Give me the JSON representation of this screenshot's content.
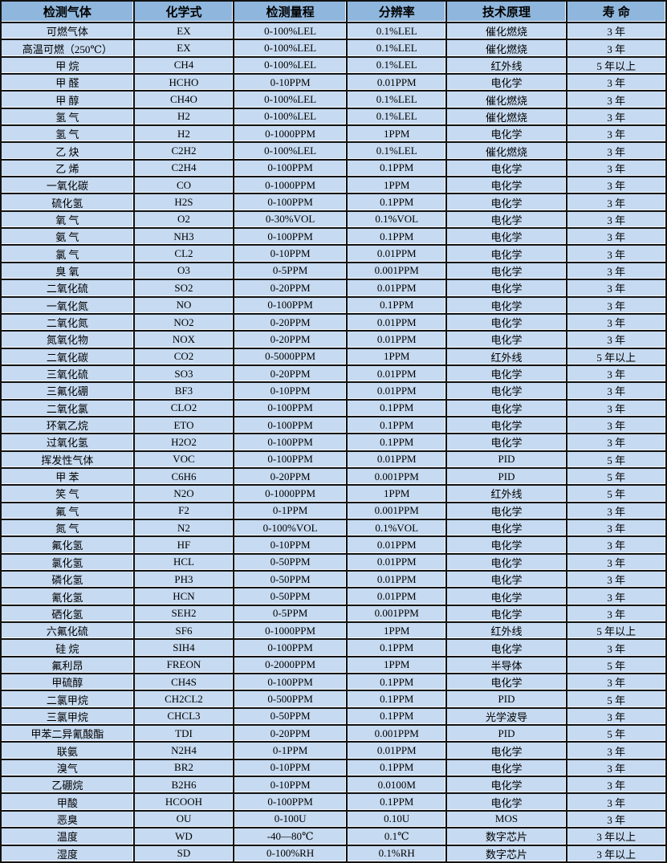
{
  "colors": {
    "header_bg": "#8fb6dc",
    "row_bg": "#c6daf1",
    "grid_line": "#121212",
    "grid_highlight": "#f7fafd",
    "text": "#000000"
  },
  "table": {
    "columns": [
      "检测气体",
      "化学式",
      "检测量程",
      "分辨率",
      "技术原理",
      "寿 命"
    ],
    "rows": [
      [
        "可燃气体",
        "EX",
        "0-100%LEL",
        "0.1%LEL",
        "催化燃烧",
        "3 年"
      ],
      [
        "高温可燃（250℃）",
        "EX",
        "0-100%LEL",
        "0.1%LEL",
        "催化燃烧",
        "3 年"
      ],
      [
        "甲 烷",
        "CH4",
        "0-100%LEL",
        "0.1%LEL",
        "红外线",
        "5 年以上"
      ],
      [
        "甲 醛",
        "HCHO",
        "0-10PPM",
        "0.01PPM",
        "电化学",
        "3 年"
      ],
      [
        "甲 醇",
        "CH4O",
        "0-100%LEL",
        "0.1%LEL",
        "催化燃烧",
        "3 年"
      ],
      [
        "氢 气",
        "H2",
        "0-100%LEL",
        "0.1%LEL",
        "催化燃烧",
        "3 年"
      ],
      [
        "氢 气",
        "H2",
        "0-1000PPM",
        "1PPM",
        "电化学",
        "3 年"
      ],
      [
        "乙 炔",
        "C2H2",
        "0-100%LEL",
        "0.1%LEL",
        "催化燃烧",
        "3 年"
      ],
      [
        "乙 烯",
        "C2H4",
        "0-100PPM",
        "0.1PPM",
        "电化学",
        "3 年"
      ],
      [
        "一氧化碳",
        "CO",
        "0-1000PPM",
        "1PPM",
        "电化学",
        "3 年"
      ],
      [
        "硫化氢",
        "H2S",
        "0-100PPM",
        "0.1PPM",
        "电化学",
        "3 年"
      ],
      [
        "氧 气",
        "O2",
        "0-30%VOL",
        "0.1%VOL",
        "电化学",
        "3 年"
      ],
      [
        "氨 气",
        "NH3",
        "0-100PPM",
        "0.1PPM",
        "电化学",
        "3 年"
      ],
      [
        "氯 气",
        "CL2",
        "0-10PPM",
        "0.01PPM",
        "电化学",
        "3 年"
      ],
      [
        "臭 氧",
        "O3",
        "0-5PPM",
        "0.001PPM",
        "电化学",
        "3 年"
      ],
      [
        "二氧化硫",
        "SO2",
        "0-20PPM",
        "0.01PPM",
        "电化学",
        "3 年"
      ],
      [
        "一氧化氮",
        "NO",
        "0-100PPM",
        "0.1PPM",
        "电化学",
        "3 年"
      ],
      [
        "二氧化氮",
        "NO2",
        "0-20PPM",
        "0.01PPM",
        "电化学",
        "3 年"
      ],
      [
        "氮氧化物",
        "NOX",
        "0-20PPM",
        "0.01PPM",
        "电化学",
        "3 年"
      ],
      [
        "二氧化碳",
        "CO2",
        "0-5000PPM",
        "1PPM",
        "红外线",
        "5 年以上"
      ],
      [
        "三氧化硫",
        "SO3",
        "0-20PPM",
        "0.01PPM",
        "电化学",
        "3 年"
      ],
      [
        "三氟化硼",
        "BF3",
        "0-10PPM",
        "0.01PPM",
        "电化学",
        "3 年"
      ],
      [
        "二氧化氯",
        "CLO2",
        "0-100PPM",
        "0.1PPM",
        "电化学",
        "3 年"
      ],
      [
        "环氧乙烷",
        "ETO",
        "0-100PPM",
        "0.1PPM",
        "电化学",
        "3 年"
      ],
      [
        "过氧化氢",
        "H2O2",
        "0-100PPM",
        "0.1PPM",
        "电化学",
        "3 年"
      ],
      [
        "挥发性气体",
        "VOC",
        "0-100PPM",
        "0.01PPM",
        "PID",
        "5 年"
      ],
      [
        "甲 苯",
        "C6H6",
        "0-20PPM",
        "0.001PPM",
        "PID",
        "5 年"
      ],
      [
        "笑 气",
        "N2O",
        "0-1000PPM",
        "1PPM",
        "红外线",
        "5 年"
      ],
      [
        "氟 气",
        "F2",
        "0-1PPM",
        "0.001PPM",
        "电化学",
        "3 年"
      ],
      [
        "氮 气",
        "N2",
        "0-100%VOL",
        "0.1%VOL",
        "电化学",
        "3 年"
      ],
      [
        "氟化氢",
        "HF",
        "0-10PPM",
        "0.01PPM",
        "电化学",
        "3 年"
      ],
      [
        "氯化氢",
        "HCL",
        "0-50PPM",
        "0.01PPM",
        "电化学",
        "3 年"
      ],
      [
        "磷化氢",
        "PH3",
        "0-50PPM",
        "0.01PPM",
        "电化学",
        "3 年"
      ],
      [
        "氰化氢",
        "HCN",
        "0-50PPM",
        "0.01PPM",
        "电化学",
        "3 年"
      ],
      [
        "硒化氢",
        "SEH2",
        "0-5PPM",
        "0.001PPM",
        "电化学",
        "3 年"
      ],
      [
        "六氟化硫",
        "SF6",
        "0-1000PPM",
        "1PPM",
        "红外线",
        "5 年以上"
      ],
      [
        "硅 烷",
        "SIH4",
        "0-100PPM",
        "0.1PPM",
        "电化学",
        "3 年"
      ],
      [
        "氟利昂",
        "FREON",
        "0-2000PPM",
        "1PPM",
        "半导体",
        "5 年"
      ],
      [
        "甲硫醇",
        "CH4S",
        "0-100PPM",
        "0.1PPM",
        "电化学",
        "3 年"
      ],
      [
        "二氯甲烷",
        "CH2CL2",
        "0-500PPM",
        "0.1PPM",
        "PID",
        "5 年"
      ],
      [
        "三氯甲烷",
        "CHCL3",
        "0-50PPM",
        "0.1PPM",
        "光学波导",
        "3 年"
      ],
      [
        "甲苯二异氰酸酯",
        "TDI",
        "0-20PPM",
        "0.001PPM",
        "PID",
        "5 年"
      ],
      [
        "联氨",
        "N2H4",
        "0-1PPM",
        "0.01PPM",
        "电化学",
        "3 年"
      ],
      [
        "溴气",
        "BR2",
        "0-10PPM",
        "0.1PPM",
        "电化学",
        "3 年"
      ],
      [
        "乙硼烷",
        "B2H6",
        "0-10PPM",
        "0.0100M",
        "电化学",
        "3 年"
      ],
      [
        "甲酸",
        "HCOOH",
        "0-100PPM",
        "0.1PPM",
        "电化学",
        "3 年"
      ],
      [
        "恶臭",
        "OU",
        "0-100U",
        "0.10U",
        "MOS",
        "3 年"
      ],
      [
        "温度",
        "WD",
        "-40—80℃",
        "0.1℃",
        "数字芯片",
        "3 年以上"
      ],
      [
        "湿度",
        "SD",
        "0-100%RH",
        "0.1%RH",
        "数字芯片",
        "3 年以上"
      ]
    ]
  }
}
